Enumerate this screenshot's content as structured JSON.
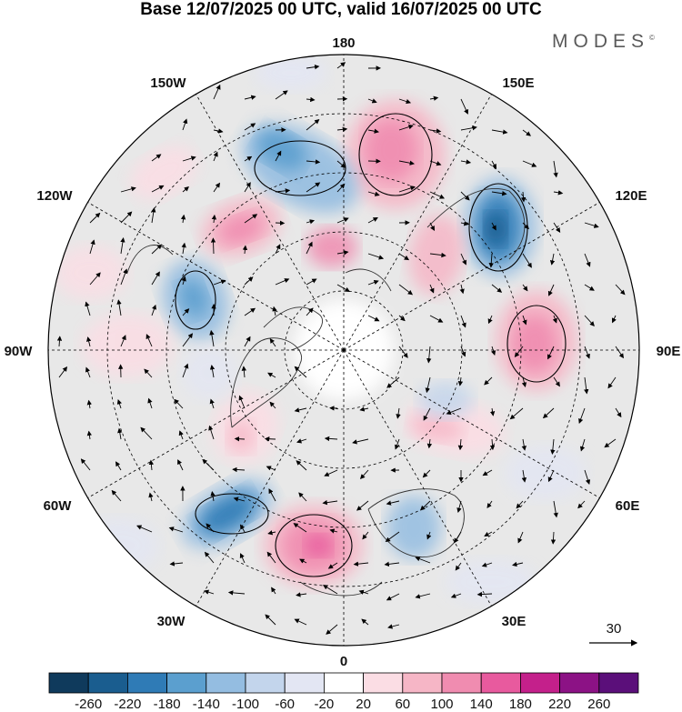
{
  "title": "Base 12/07/2025 00 UTC, valid 16/07/2025 00 UTC",
  "brand": "MODES",
  "brand_mark": "©",
  "map": {
    "projection": "polar-stereographic-north",
    "longitude_labels": [
      "180",
      "150E",
      "120E",
      "90E",
      "60E",
      "30E",
      "0",
      "30W",
      "60W",
      "90W",
      "120W",
      "150W"
    ],
    "reference_vector_label": "30"
  },
  "colorbar": {
    "tick_labels": [
      "-260",
      "-220",
      "-180",
      "-140",
      "-100",
      "-60",
      "-20",
      "20",
      "60",
      "100",
      "140",
      "180",
      "220",
      "260"
    ],
    "colors": [
      "#0f3a5c",
      "#1a5d8f",
      "#2f7bb6",
      "#5b9fcf",
      "#94bde1",
      "#c3d5ec",
      "#e3e6f3",
      "#ffffff",
      "#fbdde4",
      "#f6b6c6",
      "#f08cb0",
      "#e85a9e",
      "#c4208b",
      "#8c1285",
      "#5b0f7a"
    ]
  },
  "colors": {
    "ocean_background": "#e6e6e6",
    "positive_anomaly": "#e85a9e",
    "negative_anomaly": "#2f7bb6"
  }
}
